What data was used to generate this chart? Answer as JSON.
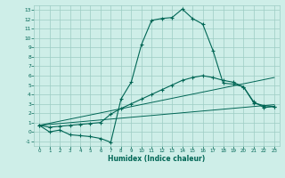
{
  "xlabel": "Humidex (Indice chaleur)",
  "xlim": [
    -0.5,
    23.5
  ],
  "ylim": [
    -1.5,
    13.5
  ],
  "xticks": [
    0,
    1,
    2,
    3,
    4,
    5,
    6,
    7,
    8,
    9,
    10,
    11,
    12,
    13,
    14,
    15,
    16,
    17,
    18,
    19,
    20,
    21,
    22,
    23
  ],
  "yticks": [
    -1,
    0,
    1,
    2,
    3,
    4,
    5,
    6,
    7,
    8,
    9,
    10,
    11,
    12,
    13
  ],
  "bg_color": "#ceeee8",
  "grid_color": "#9dccc4",
  "line_color": "#006655",
  "line1_x": [
    0,
    1,
    2,
    3,
    4,
    5,
    6,
    7,
    8,
    9,
    10,
    11,
    12,
    13,
    14,
    15,
    16,
    17,
    18,
    19,
    20,
    21,
    22,
    23
  ],
  "line1_y": [
    0.7,
    0.0,
    0.2,
    -0.3,
    -0.4,
    -0.5,
    -0.7,
    -1.1,
    3.5,
    5.3,
    9.3,
    11.9,
    12.1,
    12.2,
    13.1,
    12.1,
    11.5,
    8.7,
    5.2,
    5.1,
    4.8,
    3.2,
    2.6,
    2.7
  ],
  "line2_x": [
    0,
    23
  ],
  "line2_y": [
    0.7,
    2.9
  ],
  "line3_x": [
    0,
    1,
    2,
    3,
    4,
    5,
    6,
    7,
    8,
    9,
    10,
    11,
    12,
    13,
    14,
    15,
    16,
    17,
    18,
    19,
    20,
    21,
    22,
    23
  ],
  "line3_y": [
    0.7,
    0.5,
    0.6,
    0.7,
    0.8,
    0.9,
    1.0,
    1.9,
    2.5,
    3.0,
    3.5,
    4.0,
    4.5,
    5.0,
    5.5,
    5.8,
    6.0,
    5.8,
    5.5,
    5.3,
    4.8,
    3.1,
    2.8,
    2.7
  ],
  "line4_x": [
    0,
    23
  ],
  "line4_y": [
    0.7,
    5.8
  ]
}
